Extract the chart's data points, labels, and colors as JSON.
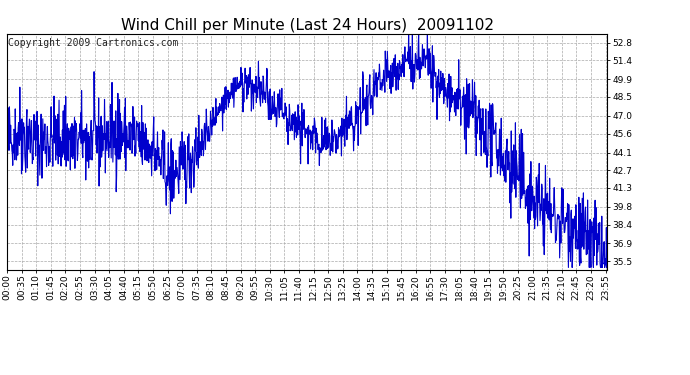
{
  "title": "Wind Chill per Minute (Last 24 Hours)  20091102",
  "copyright": "Copyright 2009 Cartronics.com",
  "line_color": "#0000cc",
  "bg_color": "#ffffff",
  "plot_bg_color": "#ffffff",
  "grid_color": "#aaaaaa",
  "yticks": [
    35.5,
    36.9,
    38.4,
    39.8,
    41.3,
    42.7,
    44.1,
    45.6,
    47.0,
    48.5,
    49.9,
    51.4,
    52.8
  ],
  "ylim": [
    34.8,
    53.5
  ],
  "xtick_labels": [
    "00:00",
    "00:35",
    "01:10",
    "01:45",
    "02:20",
    "02:55",
    "03:30",
    "04:05",
    "04:40",
    "05:15",
    "05:50",
    "06:25",
    "07:00",
    "07:35",
    "08:10",
    "08:45",
    "09:20",
    "09:55",
    "10:30",
    "11:05",
    "11:40",
    "12:15",
    "12:50",
    "13:25",
    "14:00",
    "14:35",
    "15:10",
    "15:45",
    "16:20",
    "16:55",
    "17:30",
    "18:05",
    "18:40",
    "19:15",
    "19:50",
    "20:25",
    "21:00",
    "21:35",
    "22:10",
    "22:45",
    "23:20",
    "23:55"
  ],
  "title_fontsize": 11,
  "copyright_fontsize": 7,
  "tick_fontsize": 6.5,
  "line_width": 0.8
}
